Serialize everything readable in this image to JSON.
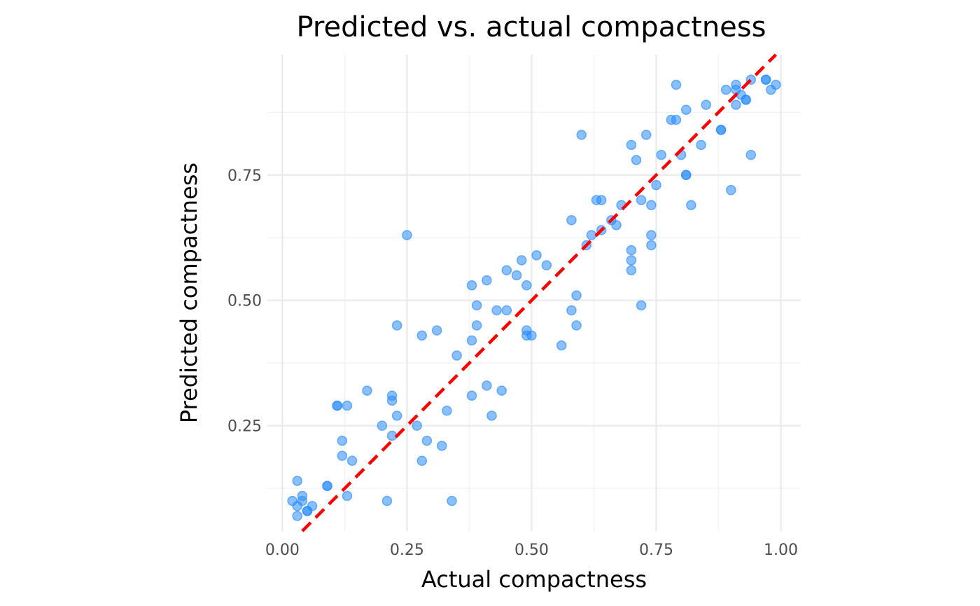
{
  "chart_data": {
    "type": "scatter",
    "title": "Predicted vs. actual compactness",
    "xlabel": "Actual compactness",
    "ylabel": "Predicted compactness",
    "xlim": [
      -0.03,
      1.04
    ],
    "ylim": [
      0.04,
      0.99
    ],
    "x_ticks": [
      0.0,
      0.25,
      0.5,
      0.75,
      1.0
    ],
    "x_tick_labels": [
      "0.00",
      "0.25",
      "0.50",
      "0.75",
      "1.00"
    ],
    "y_ticks": [
      0.25,
      0.5,
      0.75
    ],
    "y_tick_labels": [
      "0.25",
      "0.50",
      "0.75"
    ],
    "grid": true,
    "point_color": "#2a8cff",
    "line_color": "#ff0000",
    "reference_line": {
      "type": "identity",
      "style": "dashed"
    },
    "points": [
      [
        0.02,
        0.1
      ],
      [
        0.03,
        0.09
      ],
      [
        0.03,
        0.07
      ],
      [
        0.03,
        0.14
      ],
      [
        0.04,
        0.11
      ],
      [
        0.04,
        0.1
      ],
      [
        0.05,
        0.08
      ],
      [
        0.05,
        0.08
      ],
      [
        0.06,
        0.09
      ],
      [
        0.09,
        0.13
      ],
      [
        0.09,
        0.13
      ],
      [
        0.11,
        0.29
      ],
      [
        0.11,
        0.29
      ],
      [
        0.12,
        0.19
      ],
      [
        0.12,
        0.22
      ],
      [
        0.13,
        0.29
      ],
      [
        0.13,
        0.11
      ],
      [
        0.14,
        0.18
      ],
      [
        0.17,
        0.32
      ],
      [
        0.2,
        0.25
      ],
      [
        0.21,
        0.1
      ],
      [
        0.22,
        0.31
      ],
      [
        0.22,
        0.3
      ],
      [
        0.22,
        0.23
      ],
      [
        0.23,
        0.27
      ],
      [
        0.23,
        0.45
      ],
      [
        0.25,
        0.63
      ],
      [
        0.27,
        0.25
      ],
      [
        0.28,
        0.43
      ],
      [
        0.28,
        0.18
      ],
      [
        0.29,
        0.22
      ],
      [
        0.31,
        0.44
      ],
      [
        0.32,
        0.21
      ],
      [
        0.33,
        0.28
      ],
      [
        0.34,
        0.1
      ],
      [
        0.35,
        0.39
      ],
      [
        0.38,
        0.53
      ],
      [
        0.38,
        0.42
      ],
      [
        0.38,
        0.31
      ],
      [
        0.39,
        0.49
      ],
      [
        0.39,
        0.45
      ],
      [
        0.41,
        0.54
      ],
      [
        0.41,
        0.33
      ],
      [
        0.42,
        0.27
      ],
      [
        0.43,
        0.48
      ],
      [
        0.44,
        0.32
      ],
      [
        0.45,
        0.56
      ],
      [
        0.45,
        0.48
      ],
      [
        0.47,
        0.55
      ],
      [
        0.48,
        0.58
      ],
      [
        0.49,
        0.53
      ],
      [
        0.49,
        0.44
      ],
      [
        0.49,
        0.43
      ],
      [
        0.5,
        0.43
      ],
      [
        0.51,
        0.59
      ],
      [
        0.53,
        0.57
      ],
      [
        0.56,
        0.41
      ],
      [
        0.58,
        0.66
      ],
      [
        0.58,
        0.48
      ],
      [
        0.59,
        0.51
      ],
      [
        0.59,
        0.45
      ],
      [
        0.6,
        0.83
      ],
      [
        0.61,
        0.61
      ],
      [
        0.62,
        0.63
      ],
      [
        0.63,
        0.7
      ],
      [
        0.64,
        0.64
      ],
      [
        0.64,
        0.7
      ],
      [
        0.66,
        0.66
      ],
      [
        0.67,
        0.65
      ],
      [
        0.68,
        0.69
      ],
      [
        0.7,
        0.81
      ],
      [
        0.7,
        0.6
      ],
      [
        0.7,
        0.58
      ],
      [
        0.7,
        0.56
      ],
      [
        0.71,
        0.78
      ],
      [
        0.72,
        0.49
      ],
      [
        0.72,
        0.7
      ],
      [
        0.73,
        0.83
      ],
      [
        0.74,
        0.61
      ],
      [
        0.74,
        0.63
      ],
      [
        0.74,
        0.69
      ],
      [
        0.75,
        0.73
      ],
      [
        0.76,
        0.79
      ],
      [
        0.78,
        0.86
      ],
      [
        0.79,
        0.86
      ],
      [
        0.79,
        0.93
      ],
      [
        0.8,
        0.79
      ],
      [
        0.81,
        0.88
      ],
      [
        0.81,
        0.75
      ],
      [
        0.81,
        0.75
      ],
      [
        0.82,
        0.69
      ],
      [
        0.84,
        0.81
      ],
      [
        0.85,
        0.89
      ],
      [
        0.88,
        0.84
      ],
      [
        0.88,
        0.84
      ],
      [
        0.89,
        0.92
      ],
      [
        0.9,
        0.72
      ],
      [
        0.91,
        0.92
      ],
      [
        0.91,
        0.89
      ],
      [
        0.91,
        0.93
      ],
      [
        0.92,
        0.91
      ],
      [
        0.93,
        0.9
      ],
      [
        0.93,
        0.9
      ],
      [
        0.94,
        0.94
      ],
      [
        0.94,
        0.79
      ],
      [
        0.97,
        0.94
      ],
      [
        0.97,
        0.94
      ],
      [
        0.98,
        0.92
      ],
      [
        0.99,
        0.93
      ]
    ]
  }
}
